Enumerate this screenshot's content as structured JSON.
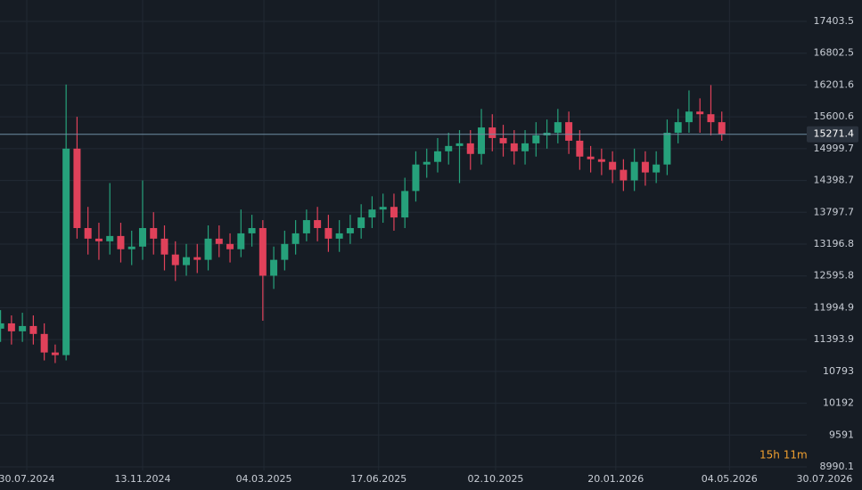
{
  "chart_data": {
    "type": "candlestick",
    "x": [
      -24,
      -14,
      -4,
      6,
      16,
      26,
      36,
      46,
      56,
      66,
      76,
      86,
      96,
      106,
      116,
      126,
      136,
      146,
      156,
      166,
      176,
      186,
      196,
      206,
      216,
      226,
      236,
      246,
      256,
      266,
      276,
      286,
      296,
      306,
      316,
      326,
      336,
      346,
      356,
      366,
      376,
      386,
      396,
      406,
      416,
      426,
      436,
      446,
      456,
      466,
      476,
      486,
      496,
      506,
      516,
      526,
      536,
      546,
      556,
      566,
      576,
      586,
      596,
      606,
      616,
      626,
      636
    ],
    "open": [
      11600,
      11700,
      11550,
      11650,
      11500,
      11150,
      11100,
      15000,
      13500,
      13300,
      13250,
      13350,
      13100,
      13150,
      13500,
      13300,
      13000,
      12800,
      12950,
      12900,
      13300,
      13200,
      13100,
      13400,
      13500,
      12600,
      12900,
      13200,
      13400,
      13650,
      13500,
      13300,
      13400,
      13500,
      13700,
      13850,
      13900,
      13700,
      14200,
      14700,
      14750,
      14950,
      15050,
      15100,
      14900,
      15400,
      15200,
      15100,
      14950,
      15100,
      15250,
      15300,
      15500,
      15150,
      14850,
      14800,
      14750,
      14600,
      14400,
      14750,
      14550,
      14700,
      15300,
      15500,
      15700,
      15650,
      15500
    ],
    "high": [
      11950,
      11850,
      11900,
      11850,
      11700,
      11300,
      16210,
      15600,
      13900,
      13600,
      14350,
      13600,
      13450,
      14400,
      13800,
      13550,
      13250,
      13200,
      13200,
      13550,
      13550,
      13400,
      13850,
      13750,
      13650,
      13150,
      13450,
      13650,
      13850,
      13900,
      13750,
      13650,
      13750,
      13950,
      14100,
      14150,
      14150,
      14450,
      14950,
      15000,
      15200,
      15300,
      15350,
      15350,
      15750,
      15650,
      15450,
      15350,
      15350,
      15500,
      15550,
      15750,
      15700,
      15350,
      15050,
      15000,
      14950,
      14800,
      15000,
      14950,
      14950,
      15550,
      15750,
      16100,
      15950,
      16200,
      15700
    ],
    "low": [
      11350,
      11300,
      11350,
      11300,
      11000,
      10950,
      11000,
      13300,
      13000,
      12900,
      13000,
      12850,
      12800,
      12900,
      13000,
      12700,
      12500,
      12600,
      12650,
      12700,
      12950,
      12850,
      12950,
      13150,
      11750,
      12350,
      12700,
      13000,
      13250,
      13250,
      13050,
      13050,
      13200,
      13300,
      13500,
      13600,
      13450,
      13500,
      14000,
      14450,
      14550,
      14700,
      14350,
      14600,
      14700,
      14950,
      14850,
      14700,
      14700,
      14850,
      15000,
      15100,
      14900,
      14600,
      14550,
      14500,
      14350,
      14200,
      14200,
      14300,
      14350,
      14500,
      15100,
      15300,
      15300,
      15250,
      15150
    ],
    "close": [
      11700,
      11550,
      11650,
      11500,
      11150,
      11100,
      15000,
      13500,
      13300,
      13250,
      13350,
      13100,
      13150,
      13500,
      13300,
      13000,
      12800,
      12950,
      12900,
      13300,
      13200,
      13100,
      13400,
      13500,
      12600,
      12900,
      13200,
      13400,
      13650,
      13500,
      13300,
      13400,
      13500,
      13700,
      13850,
      13900,
      13700,
      14200,
      14700,
      14750,
      14950,
      15050,
      15100,
      14900,
      15400,
      15200,
      15100,
      14950,
      15100,
      15250,
      15300,
      15500,
      15150,
      14850,
      14800,
      14750,
      14600,
      14400,
      14750,
      14550,
      14700,
      15300,
      15500,
      15700,
      15650,
      15500,
      15271.4
    ],
    "up_color": "#26a17b",
    "down_color": "#e0415a",
    "xlim": [
      -24.5,
      764.3
    ],
    "xticks": [
      {
        "value": 0,
        "label": "30.07.2024"
      },
      {
        "value": 106,
        "label": "13.11.2024"
      },
      {
        "value": 217,
        "label": "04.03.2025"
      },
      {
        "value": 322,
        "label": "17.06.2025"
      },
      {
        "value": 429,
        "label": "02.10.2025"
      },
      {
        "value": 539,
        "label": "20.01.2026"
      },
      {
        "value": 643,
        "label": "04.05.2026"
      },
      {
        "value": 730,
        "label": "30.07.2026"
      }
    ],
    "ylim": [
      8552.5,
      17807.4
    ],
    "yticks": [
      17403.5,
      16802.5,
      16201.6,
      15600.6,
      14999.7,
      14398.7,
      13797.7,
      13196.8,
      12595.8,
      11994.9,
      11393.9,
      10793.0,
      10192.0,
      9591.0,
      8990.1
    ],
    "last_price": 15271.4,
    "countdown": "15h 11m",
    "grid": true
  }
}
